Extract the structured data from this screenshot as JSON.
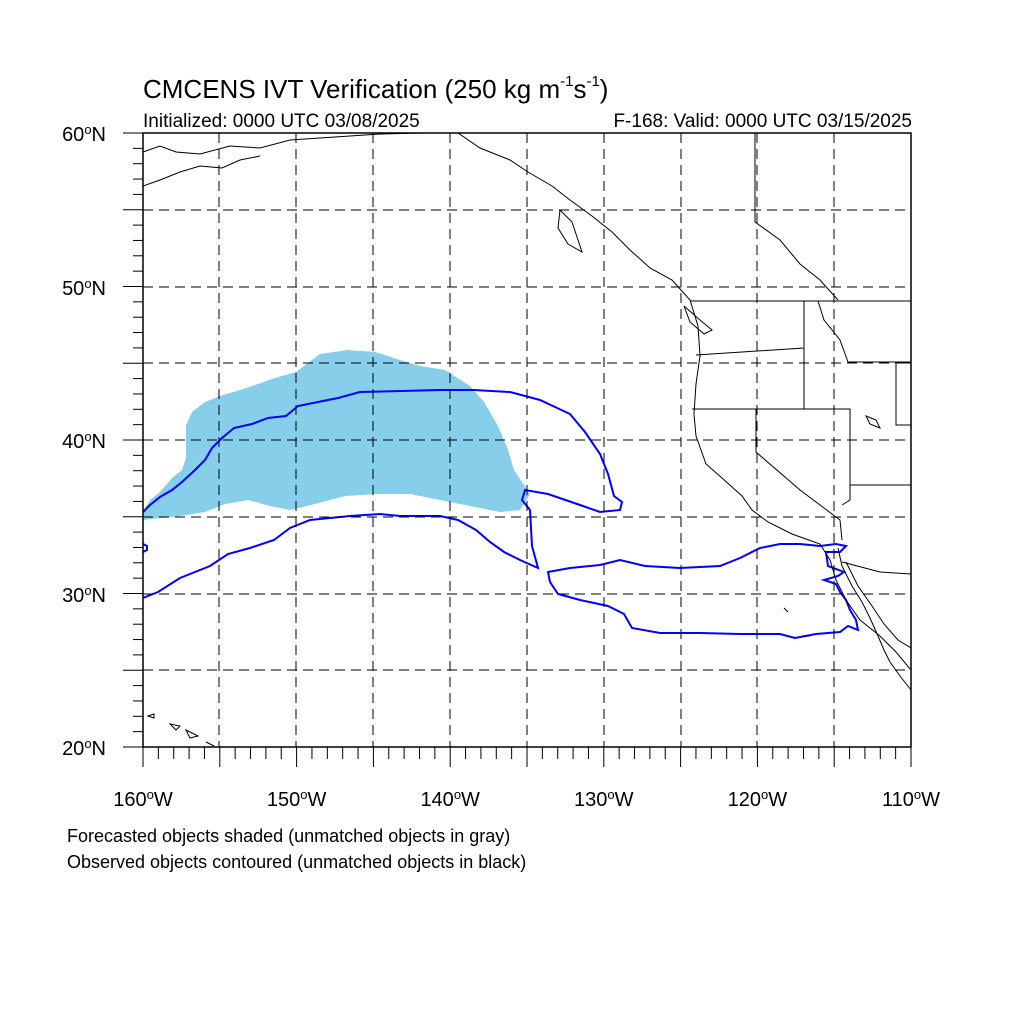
{
  "title": {
    "main": "CMCENS IVT Verification (250 kg m",
    "exp1": "-1",
    "mid": "s",
    "exp2": "-1",
    "end": ")"
  },
  "subtitle": {
    "initialized": "Initialized: 0000 UTC 03/08/2025",
    "valid": "F-168: Valid: 0000 UTC 03/15/2025"
  },
  "map_extent": {
    "lon_min": -160,
    "lon_max": -110,
    "lat_min": 20,
    "lat_max": 60
  },
  "lat_labels": [
    {
      "value": 60,
      "num": "60",
      "hemi": "N"
    },
    {
      "value": 50,
      "num": "50",
      "hemi": "N"
    },
    {
      "value": 40,
      "num": "40",
      "hemi": "N"
    },
    {
      "value": 30,
      "num": "30",
      "hemi": "N"
    },
    {
      "value": 20,
      "num": "20",
      "hemi": "N"
    }
  ],
  "lon_labels": [
    {
      "value": -160,
      "num": "160",
      "hemi": "W"
    },
    {
      "value": -150,
      "num": "150",
      "hemi": "W"
    },
    {
      "value": -140,
      "num": "140",
      "hemi": "W"
    },
    {
      "value": -130,
      "num": "130",
      "hemi": "W"
    },
    {
      "value": -120,
      "num": "120",
      "hemi": "W"
    },
    {
      "value": -110,
      "num": "110",
      "hemi": "W"
    }
  ],
  "colors": {
    "forecast_shading": "#87ceeb",
    "observed_contour": "#0000ff",
    "coastline": "#000000",
    "grid": "#000000"
  },
  "notes": {
    "line1": "Forecasted objects shaded (unmatched objects in gray)",
    "line2": "Observed objects contoured (unmatched objects in black)"
  }
}
